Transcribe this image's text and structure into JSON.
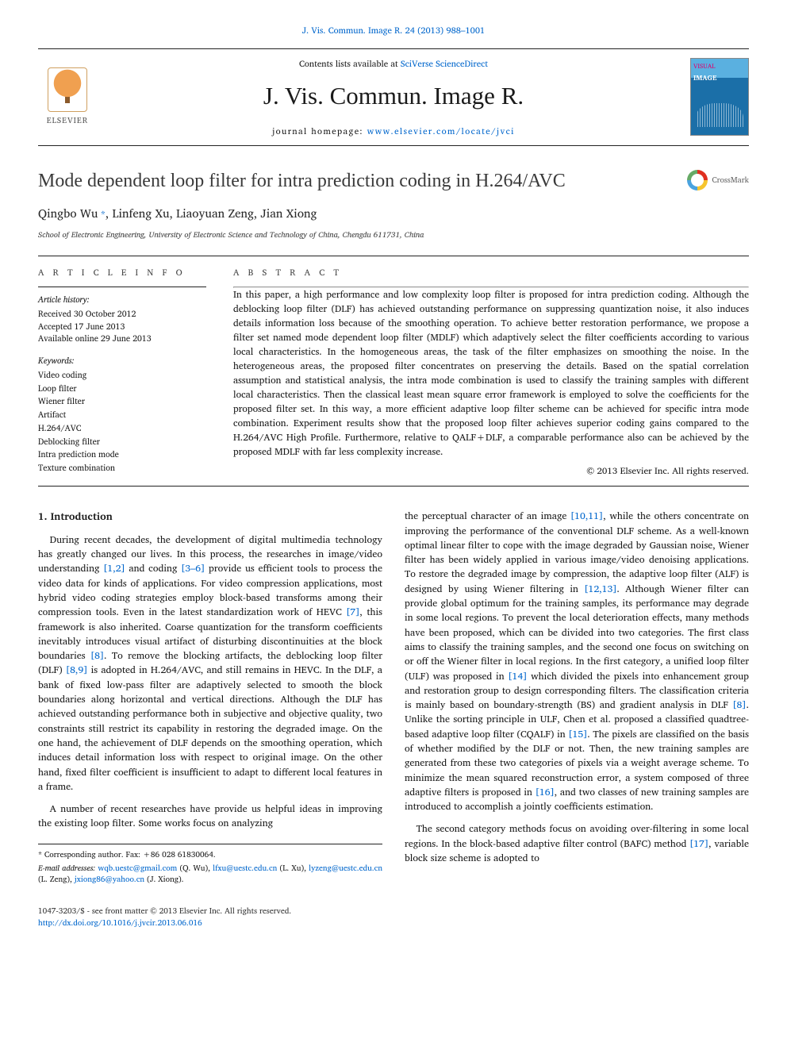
{
  "top_citation": "J. Vis. Commun. Image R. 24 (2013) 988–1001",
  "masthead": {
    "publisher_name": "ELSEVIER",
    "contents_text_pre": "Contents lists available at ",
    "contents_link": "SciVerse ScienceDirect",
    "journal_title": "J. Vis. Commun. Image R.",
    "homepage_label": "journal homepage: ",
    "homepage_url": "www.elsevier.com/locate/jvci",
    "cover_top": "VISUAL",
    "cover_mid": "IMAGE"
  },
  "crossmark_label": "CrossMark",
  "title": "Mode dependent loop filter for intra prediction coding in H.264/AVC",
  "authors_html": "Qingbo Wu",
  "authors_corr_marker": " *",
  "authors_rest": ", Linfeng Xu, Liaoyuan Zeng, Jian Xiong",
  "affiliation": "School of Electronic Engineering, University of Electronic Science and Technology of China, Chengdu 611731, China",
  "info_head": "A R T I C L E   I N F O",
  "abstract_head": "A B S T R A C T",
  "history": {
    "label": "Article history:",
    "received": "Received 30 October 2012",
    "accepted": "Accepted 17 June 2013",
    "online": "Available online 29 June 2013"
  },
  "keywords": {
    "label": "Keywords:",
    "items": [
      "Video coding",
      "Loop filter",
      "Wiener filter",
      "Artifact",
      "H.264/AVC",
      "Deblocking filter",
      "Intra prediction mode",
      "Texture combination"
    ]
  },
  "abstract": "In this paper, a high performance and low complexity loop filter is proposed for intra prediction coding. Although the deblocking loop filter (DLF) has achieved outstanding performance on suppressing quantization noise, it also induces details information loss because of the smoothing operation. To achieve better restoration performance, we propose a filter set named mode dependent loop filter (MDLF) which adaptively select the filter coefficients according to various local characteristics. In the homogeneous areas, the task of the filter emphasizes on smoothing the noise. In the heterogeneous areas, the proposed filter concentrates on preserving the details. Based on the spatial correlation assumption and statistical analysis, the intra mode combination is used to classify the training samples with different local characteristics. Then the classical least mean square error framework is employed to solve the coefficients for the proposed filter set. In this way, a more efficient adaptive loop filter scheme can be achieved for specific intra mode combination. Experiment results show that the proposed loop filter achieves superior coding gains compared to the H.264/AVC High Profile. Furthermore, relative to QALF+DLF, a comparable performance also can be achieved by the proposed MDLF with far less complexity increase.",
  "copyright": "© 2013 Elsevier Inc. All rights reserved.",
  "section1_title": "1. Introduction",
  "body": {
    "p1a": "During recent decades, the development of digital multimedia technology has greatly changed our lives. In this process, the researches in image/video understanding ",
    "c1": "[1,2]",
    "p1b": " and coding ",
    "c2": "[3–6]",
    "p1c": " provide us efficient tools to process the video data for kinds of applications. For video compression applications, most hybrid video coding strategies employ block-based transforms among their compression tools. Even in the latest standardization work of HEVC ",
    "c3": "[7]",
    "p1d": ", this framework is also inherited. Coarse quantization for the transform coefficients inevitably introduces visual artifact of disturbing discontinuities at the block boundaries ",
    "c4": "[8]",
    "p1e": ". To remove the blocking artifacts, the deblocking loop filter (DLF) ",
    "c5": "[8,9]",
    "p1f": " is adopted in H.264/AVC, and still remains in HEVC. In the DLF, a bank of fixed low-pass filter are adaptively selected to smooth the block boundaries along horizontal and vertical directions. Although the DLF has achieved outstanding performance both in subjective and objective quality, two constraints still restrict its capability in restoring the degraded image. On the one hand, the achievement of DLF depends on the smoothing operation, which induces detail information loss with respect to original image. On the other hand, fixed filter coefficient is insufficient to adapt to different local features in a frame.",
    "p2": "A number of recent researches have provide us helpful ideas in improving the existing loop filter. Some works focus on analyzing",
    "p3a": "the perceptual character of an image ",
    "c6": "[10,11]",
    "p3b": ", while the others concentrate on improving the performance of the conventional DLF scheme. As a well-known optimal linear filter to cope with the image degraded by Gaussian noise, Wiener filter has been widely applied in various image/video denoising applications. To restore the degraded image by compression, the adaptive loop filter (ALF) is designed by using Wiener filtering in ",
    "c7": "[12,13]",
    "p3c": ". Although Wiener filter can provide global optimum for the training samples, its performance may degrade in some local regions. To prevent the local deterioration effects, many methods have been proposed, which can be divided into two categories. The first class aims to classify the training samples, and the second one focus on switching on or off the Wiener filter in local regions. In the first category, a unified loop filter (ULF) was proposed in ",
    "c8": "[14]",
    "p3d": " which divided the pixels into enhancement group and restoration group to design corresponding filters. The classification criteria is mainly based on boundary-strength (BS) and gradient analysis in DLF ",
    "c9": "[8]",
    "p3e": ". Unlike the sorting principle in ULF, Chen et al. proposed a classified quadtree-based adaptive loop filter (CQALF) in ",
    "c10": "[15]",
    "p3f": ". The pixels are classified on the basis of whether modified by the DLF or not. Then, the new training samples are generated from these two categories of pixels via a weight average scheme. To minimize the mean squared reconstruction error, a system composed of three adaptive filters is proposed in ",
    "c11": "[16]",
    "p3g": ", and two classes of new training samples are introduced to accomplish a jointly coefficients estimation.",
    "p4a": "The second category methods focus on avoiding over-filtering in some local regions. In the block-based adaptive filter control (BAFC) method ",
    "c12": "[17]",
    "p4b": ", variable block size scheme is adopted to"
  },
  "footnotes": {
    "corr": "* Corresponding author. Fax: +86 028 61830064.",
    "emails_label": "E-mail addresses: ",
    "e1": "wqb.uestc@gmail.com",
    "n1": " (Q. Wu), ",
    "e2": "lfxu@uestc.edu.cn",
    "n2": " (L. Xu), ",
    "e3": "lyzeng@uestc.edu.cn",
    "n3": " (L. Zeng), ",
    "e4": "jxiong86@yahoo.cn",
    "n4": " (J. Xiong)."
  },
  "bottom": {
    "issn": "1047-3203/$ - see front matter © 2013 Elsevier Inc. All rights reserved.",
    "doi": "http://dx.doi.org/10.1016/j.jvcir.2013.06.016"
  },
  "colors": {
    "link": "#0066cc",
    "text": "#1a1a1a",
    "orange": "#e97827"
  }
}
